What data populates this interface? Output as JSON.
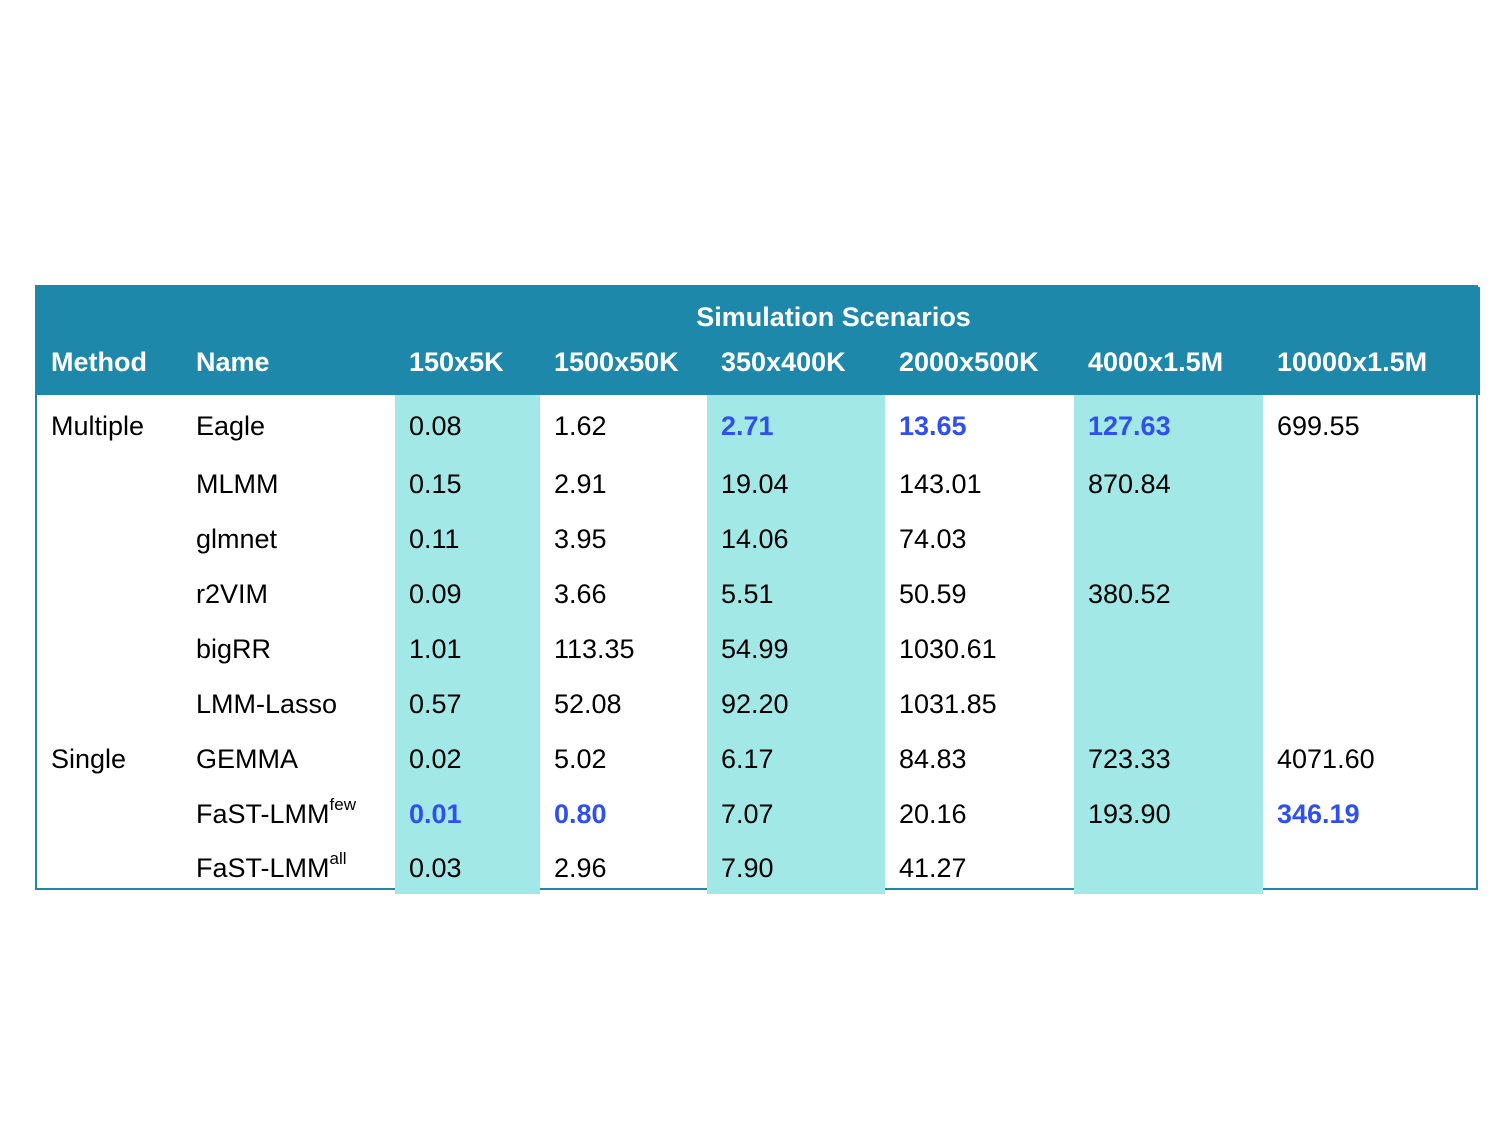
{
  "table": {
    "group_header": "Simulation Scenarios",
    "columns": [
      "Method",
      "Name",
      "150x5K",
      "1500x50K",
      "350x400K",
      "2000x500K",
      "4000x1.5M",
      "10000x1.5M"
    ],
    "shaded_columns": [
      0,
      2,
      4
    ],
    "highlight_color": "#2f4ff2",
    "shade_color": "#a2e8e7",
    "header_color": "#1e88ab",
    "rows": [
      {
        "method": "Multiple",
        "name": "Eagle",
        "name_sup": "",
        "values": [
          "0.08",
          "1.62",
          "2.71",
          "13.65",
          "127.63",
          "699.55"
        ],
        "best": [
          false,
          false,
          true,
          true,
          true,
          false
        ]
      },
      {
        "method": "",
        "name": "MLMM",
        "name_sup": "",
        "values": [
          "0.15",
          "2.91",
          "19.04",
          "143.01",
          "870.84",
          ""
        ],
        "best": [
          false,
          false,
          false,
          false,
          false,
          false
        ]
      },
      {
        "method": "",
        "name": "glmnet",
        "name_sup": "",
        "values": [
          "0.11",
          "3.95",
          "14.06",
          "74.03",
          "",
          ""
        ],
        "best": [
          false,
          false,
          false,
          false,
          false,
          false
        ]
      },
      {
        "method": "",
        "name": "r2VIM",
        "name_sup": "",
        "values": [
          "0.09",
          "3.66",
          "5.51",
          "50.59",
          "380.52",
          ""
        ],
        "best": [
          false,
          false,
          false,
          false,
          false,
          false
        ]
      },
      {
        "method": "",
        "name": "bigRR",
        "name_sup": "",
        "values": [
          "1.01",
          "113.35",
          "54.99",
          "1030.61",
          "",
          ""
        ],
        "best": [
          false,
          false,
          false,
          false,
          false,
          false
        ]
      },
      {
        "method": "",
        "name": "LMM-Lasso",
        "name_sup": "",
        "values": [
          "0.57",
          "52.08",
          "92.20",
          "1031.85",
          "",
          ""
        ],
        "best": [
          false,
          false,
          false,
          false,
          false,
          false
        ]
      },
      {
        "method": "Single",
        "name": "GEMMA",
        "name_sup": "",
        "values": [
          "0.02",
          "5.02",
          "6.17",
          "84.83",
          "723.33",
          "4071.60"
        ],
        "best": [
          false,
          false,
          false,
          false,
          false,
          false
        ]
      },
      {
        "method": "",
        "name": "FaST-LMM",
        "name_sup": "few",
        "values": [
          "0.01",
          "0.80",
          "7.07",
          "20.16",
          "193.90",
          "346.19"
        ],
        "best": [
          true,
          true,
          false,
          false,
          false,
          true
        ]
      },
      {
        "method": "",
        "name": "FaST-LMM",
        "name_sup": "all",
        "values": [
          "0.03",
          "2.96",
          "7.90",
          "41.27",
          "",
          ""
        ],
        "best": [
          false,
          false,
          false,
          false,
          false,
          false
        ]
      }
    ]
  }
}
